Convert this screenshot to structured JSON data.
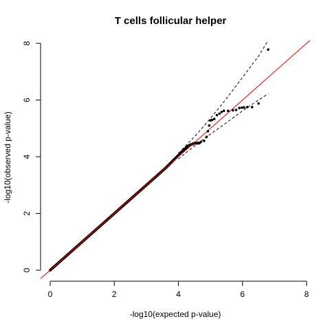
{
  "chart_data": {
    "type": "scatter",
    "title": "T cells follicular helper",
    "xlabel": "-log10(expected p-value)",
    "ylabel": "-log10(observed p-value)",
    "xlim": [
      0,
      8
    ],
    "ylim": [
      0,
      8
    ],
    "xticks": [
      "0",
      "2",
      "4",
      "6",
      "8"
    ],
    "yticks": [
      "0",
      "2",
      "4",
      "6",
      "8"
    ],
    "grid": false,
    "colors": {
      "points": "#000000",
      "reference_line": "#ff0000",
      "confidence_band": "#000000"
    },
    "series": [
      {
        "kind": "points",
        "x": [
          4.7,
          4.8,
          4.88,
          4.92,
          4.96,
          5.0,
          5.05,
          5.12,
          5.2,
          5.28,
          5.35,
          5.42,
          5.55,
          5.7,
          5.8,
          5.9,
          5.98,
          6.05,
          6.15,
          6.3,
          6.5,
          6.8
        ],
        "y": [
          4.52,
          4.56,
          4.7,
          4.9,
          5.1,
          5.28,
          5.3,
          5.33,
          5.47,
          5.52,
          5.58,
          5.62,
          5.62,
          5.64,
          5.65,
          5.72,
          5.73,
          5.74,
          5.75,
          5.75,
          5.88,
          7.78
        ]
      },
      {
        "kind": "points_band",
        "x": [
          0,
          1,
          2,
          3,
          3.6,
          4.0,
          4.3,
          4.5,
          4.65
        ],
        "y": [
          0,
          1,
          2,
          3,
          3.6,
          4.05,
          4.38,
          4.48,
          4.48
        ]
      },
      {
        "kind": "reference_line",
        "x": [
          -0.3,
          8.1
        ],
        "y": [
          -0.3,
          8.1
        ]
      },
      {
        "kind": "upper_bound",
        "x": [
          4.0,
          4.5,
          5.0,
          5.5,
          6.0,
          6.5,
          6.8
        ],
        "y": [
          4.12,
          4.7,
          5.35,
          6.05,
          6.8,
          7.55,
          8.1
        ]
      },
      {
        "kind": "lower_bound",
        "x": [
          4.0,
          4.5,
          5.0,
          5.5,
          6.0,
          6.5,
          6.8
        ],
        "y": [
          3.92,
          4.38,
          4.8,
          5.2,
          5.62,
          6.0,
          6.22
        ]
      }
    ]
  }
}
